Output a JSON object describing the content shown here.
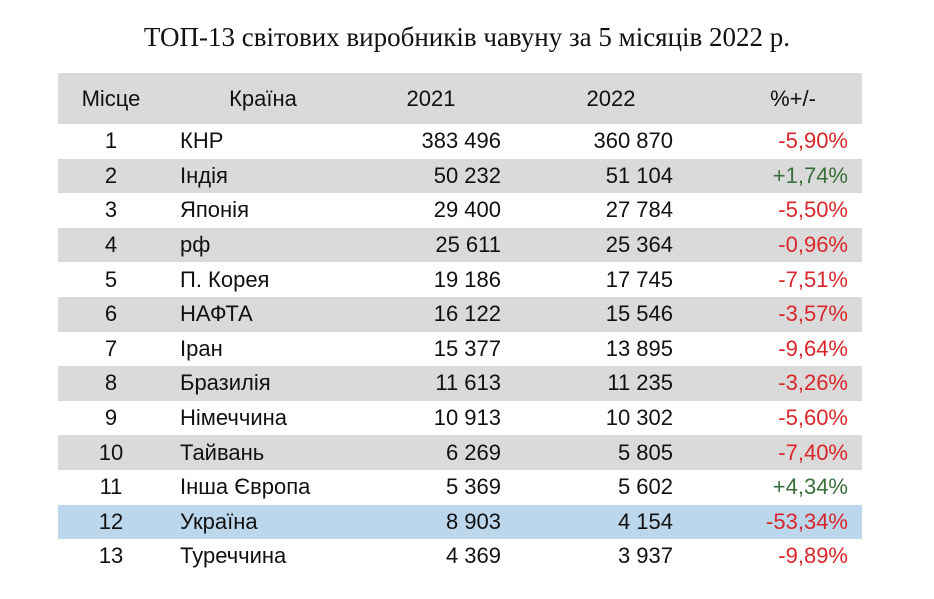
{
  "chart_data": {
    "type": "table",
    "title": "ТОП-13 світових виробників чавуну за 5 місяців 2022 р.",
    "columns": [
      "Місце",
      "Країна",
      "2021",
      "2022",
      "%+/-"
    ],
    "rows": [
      {
        "rank": "1",
        "country": "КНР",
        "v2021": "383 496",
        "v2022": "360 870",
        "change": "-5,90%"
      },
      {
        "rank": "2",
        "country": "Індія",
        "v2021": "50 232",
        "v2022": "51 104",
        "change": "+1,74%"
      },
      {
        "rank": "3",
        "country": "Японія",
        "v2021": "29 400",
        "v2022": "27 784",
        "change": "-5,50%"
      },
      {
        "rank": "4",
        "country": "рф",
        "v2021": "25 611",
        "v2022": "25 364",
        "change": "-0,96%"
      },
      {
        "rank": "5",
        "country": "П. Корея",
        "v2021": "19 186",
        "v2022": "17 745",
        "change": "-7,51%"
      },
      {
        "rank": "6",
        "country": "НАФТА",
        "v2021": "16 122",
        "v2022": "15 546",
        "change": "-3,57%"
      },
      {
        "rank": "7",
        "country": "Іран",
        "v2021": "15 377",
        "v2022": "13 895",
        "change": "-9,64%"
      },
      {
        "rank": "8",
        "country": "Бразилія",
        "v2021": "11 613",
        "v2022": "11 235",
        "change": "-3,26%"
      },
      {
        "rank": "9",
        "country": "Німеччина",
        "v2021": "10 913",
        "v2022": "10 302",
        "change": "-5,60%"
      },
      {
        "rank": "10",
        "country": "Тайвань",
        "v2021": "6 269",
        "v2022": "5 805",
        "change": "-7,40%"
      },
      {
        "rank": "11",
        "country": "Інша Європа",
        "v2021": "5 369",
        "v2022": "5 602",
        "change": "+4,34%"
      },
      {
        "rank": "12",
        "country": "Україна",
        "v2021": "8 903",
        "v2022": "4 154",
        "change": "-53,34%"
      },
      {
        "rank": "13",
        "country": "Туреччина",
        "v2021": "4 369",
        "v2022": "3 937",
        "change": "-9,89%"
      }
    ],
    "highlighted_row": "12",
    "colors": {
      "header_bg": "#dadada",
      "stripe_bg": "#dadada",
      "highlight_bg": "#bcd6ec",
      "negative": "#d9262b",
      "positive": "#3a6e3a"
    }
  }
}
